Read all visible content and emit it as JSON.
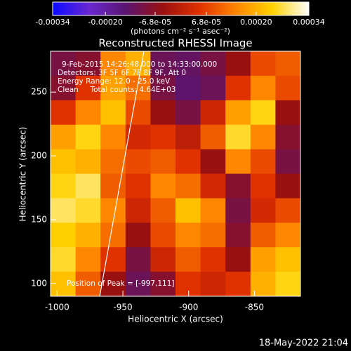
{
  "chart_data": {
    "type": "image",
    "title": "Reconstructed RHESSI Image",
    "xlabel": "Heliocentric X (arcsec)",
    "ylabel": "Heliocentric Y (arcsec)",
    "annotations": [
      "9-Feb-2015 14:26:48.000 to 14:33:00.000",
      "Detectors: 3F 5F 6F 7F 8F 9F, Att 0",
      "Energy Range: 12.0 - 25.0 keV",
      "Clean     Total counts: 4.64E+03"
    ],
    "peak_label": "Position of Peak = [-997,111]",
    "timestamp": "18-May-2022 21:04",
    "xlim": [
      -1005,
      -815
    ],
    "ylim": [
      90,
      282
    ],
    "xticks": [
      -1000,
      -950,
      -900,
      -850
    ],
    "yticks": [
      100,
      150,
      200,
      250
    ],
    "x": [
      -995.5,
      -976.5,
      -957.5,
      -938.5,
      -919.5,
      -900.5,
      -881.5,
      -862.5,
      -843.5,
      -824.5
    ],
    "y": [
      272.4,
      253.2,
      234,
      214.8,
      195.6,
      176.4,
      157.2,
      138,
      118.8,
      99.6
    ],
    "z": [
      [
        -0.0001,
        -8e-05,
        0.00015,
        0.0002,
        -0.00012,
        -0.00013,
        -0.0001,
        -5e-05,
        8e-05,
        0.0001
      ],
      [
        -8e-05,
        5e-05,
        0.00018,
        0.00012,
        -0.0001,
        -0.00014,
        -0.00012,
        5e-05,
        0.00015,
        8e-05
      ],
      [
        5e-05,
        0.00015,
        0.00022,
        8e-05,
        -5e-05,
        -0.0001,
        2e-05,
        0.00018,
        0.00025,
        -5e-05
      ],
      [
        0.00018,
        0.00025,
        0.00015,
        3e-05,
        5e-05,
        0,
        0.0001,
        0.00026,
        0.00015,
        -8e-05
      ],
      [
        0.00022,
        0.0002,
        0.00012,
        8e-05,
        0.0001,
        5e-05,
        -5e-05,
        0.00015,
        8e-05,
        -0.0001
      ],
      [
        0.00025,
        0.00028,
        0.0001,
        5e-05,
        0.00015,
        0.00012,
        3e-05,
        -8e-05,
        5e-05,
        -5e-05
      ],
      [
        0.00028,
        0.00026,
        0.00015,
        2e-05,
        0.0001,
        0.00022,
        0.00015,
        -0.0001,
        3e-05,
        8e-05
      ],
      [
        0.00024,
        0.0002,
        0.00012,
        -5e-05,
        8e-05,
        0.00015,
        0.00012,
        -8e-05,
        0.0001,
        0.00015
      ],
      [
        0.00026,
        0.00015,
        5e-05,
        -0.0001,
        2e-05,
        0.0001,
        5e-05,
        -5e-05,
        0.00018,
        0.00022
      ],
      [
        0.00022,
        0.0001,
        -5e-05,
        -0.00012,
        -8e-05,
        5e-05,
        2e-05,
        5e-05,
        0.0002,
        0.00025
      ]
    ],
    "colormap": [
      "#0a0aff",
      "#6a28d0",
      "#5a1470",
      "#9a1010",
      "#e03000",
      "#ff8400",
      "#ffd200",
      "#ffffff"
    ],
    "colorbar": {
      "label": "(photons cm⁻² s⁻¹ asec⁻²)",
      "lim": [
        -0.00034,
        0.00034
      ],
      "ticks": [
        {
          "value": -0.00034,
          "label": "-0.00034"
        },
        {
          "value": -0.0002,
          "label": "-0.00020"
        },
        {
          "value": -6.8e-05,
          "label": "-6.8e-05"
        },
        {
          "value": 6.8e-05,
          "label": "6.8e-05"
        },
        {
          "value": 0.0002,
          "label": "0.00020"
        },
        {
          "value": 0.00034,
          "label": "0.00034"
        }
      ]
    }
  }
}
